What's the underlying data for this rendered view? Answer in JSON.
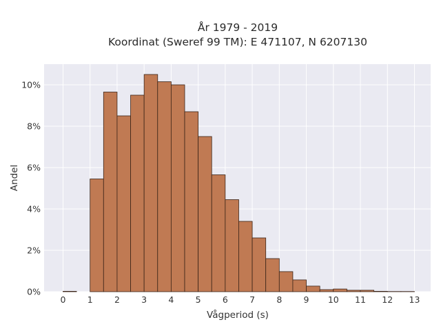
{
  "chart_data": {
    "type": "bar",
    "title_line1": "År 1979 - 2019",
    "title_line2": "Koordinat (Sweref 99 TM): E 471107, N 6207130",
    "xlabel": "Vågperiod (s)",
    "ylabel": "Andel",
    "bin_width": 0.5,
    "bins_start": [
      0,
      0.5,
      1,
      1.5,
      2,
      2.5,
      3,
      3.5,
      4,
      4.5,
      5,
      5.5,
      6,
      6.5,
      7,
      7.5,
      8,
      8.5,
      9,
      9.5,
      10,
      10.5,
      11,
      11.5,
      12,
      12.5
    ],
    "values": [
      0.02,
      0,
      5.45,
      9.65,
      8.5,
      9.5,
      10.5,
      10.15,
      10.0,
      8.7,
      7.5,
      5.65,
      4.45,
      3.4,
      2.6,
      1.6,
      0.97,
      0.57,
      0.27,
      0.1,
      0.13,
      0.07,
      0.07,
      0.02,
      0.01,
      0.01
    ],
    "xticks": [
      "0",
      "1",
      "2",
      "3",
      "4",
      "5",
      "6",
      "7",
      "8",
      "9",
      "10",
      "11",
      "12",
      "13"
    ],
    "yticks": [
      "0%",
      "2%",
      "4%",
      "6%",
      "8%",
      "10%"
    ],
    "xlim": [
      -0.7,
      13.6
    ],
    "ylim": [
      0,
      11
    ],
    "grid": true,
    "colors": {
      "bar_fill": "#c07a53",
      "bar_edge": "#3a2418",
      "plot_bg": "#eaeaf2",
      "grid": "#ffffff"
    }
  }
}
